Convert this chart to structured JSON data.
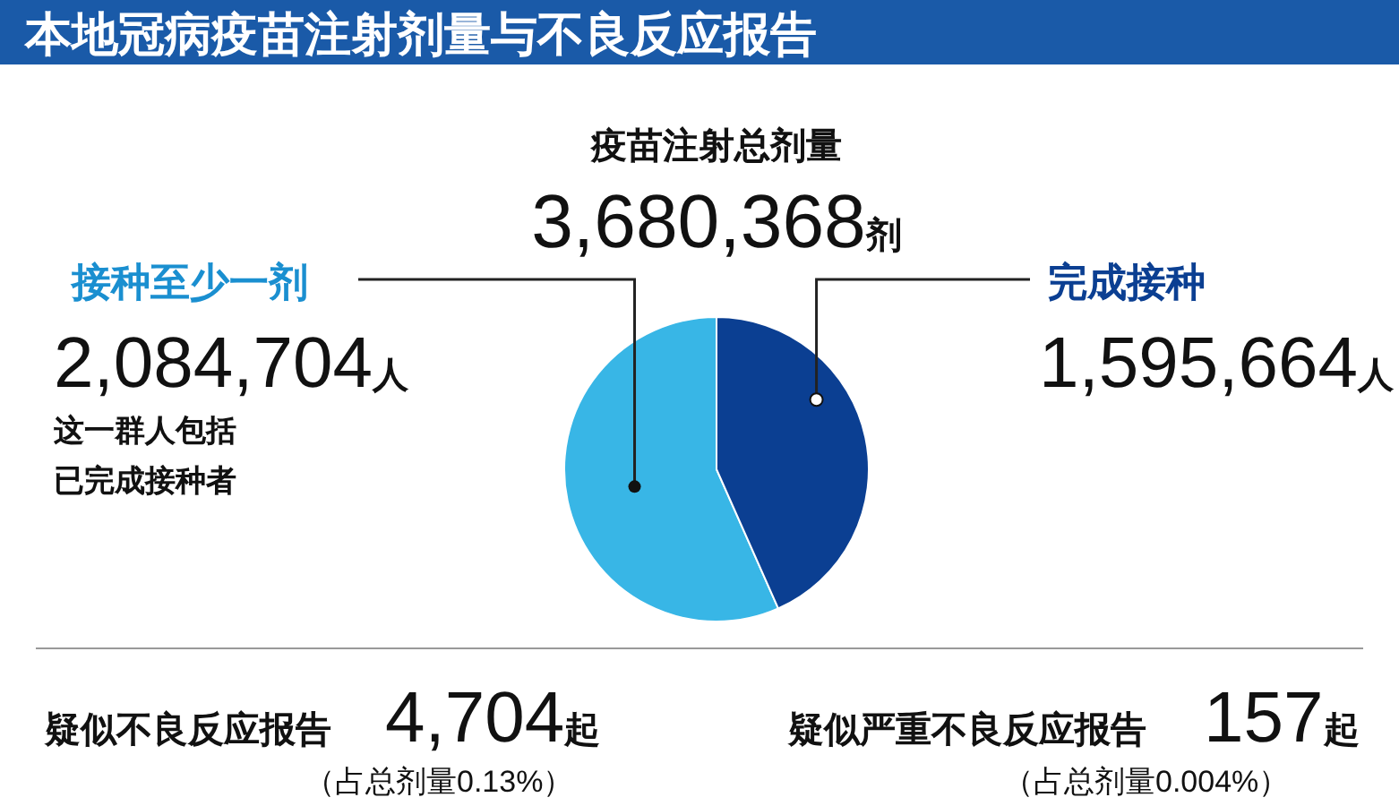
{
  "chart_data": {
    "type": "pie",
    "title": "本地冠病疫苗注射剂量与不良反应报告",
    "categories": [
      "接种至少一剂",
      "完成接种"
    ],
    "values": [
      2084704,
      1595664
    ],
    "colors": [
      "#38b6e6",
      "#0b3f92"
    ],
    "value_labels": [
      "2,084,704人",
      "1,595,664人"
    ],
    "annotations": [
      "疫苗注射总剂量",
      "3,680,368剂",
      "这一群人包括",
      "已完成接种者",
      "疑似不良反应报告",
      "4,704起",
      "（占总剂量0.13%）",
      "疑似严重不良反应报告",
      "157起",
      "（占总剂量0.004%）"
    ]
  }
}
